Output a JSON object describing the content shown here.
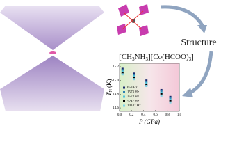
{
  "labels": {
    "structure": "Structure",
    "formula": [
      "[CH",
      "3",
      "NH",
      "3",
      "][Co(HCOO)",
      "3",
      "]"
    ]
  },
  "chart_data": {
    "type": "scatter",
    "y_label": [
      "T",
      "N",
      " (K)"
    ],
    "x_label": "P (GPa)",
    "x": [
      0.05,
      0.25,
      0.45,
      0.7,
      0.85
    ],
    "series": [
      {
        "name": "653 Hz",
        "color": "#1a2a6c",
        "values": [
          15.17,
          15.1,
          15.0,
          14.86,
          14.76
        ]
      },
      {
        "name": "1573 Hz",
        "color": "#2a7fb0",
        "values": [
          15.15,
          15.08,
          14.98,
          14.84,
          14.74
        ]
      },
      {
        "name": "3573 Hz",
        "color": "#4fc3d9",
        "values": [
          15.13,
          15.06,
          14.96,
          14.82,
          14.72
        ]
      },
      {
        "name": "5247 Hz",
        "color": "#000000",
        "values": [
          15.11,
          15.04,
          14.94,
          14.8,
          14.7
        ]
      },
      {
        "name": "10147 Hz",
        "color": "#7fd3e6",
        "values": [
          15.09,
          15.02,
          14.92,
          14.78,
          14.68
        ]
      }
    ],
    "xlim": [
      0,
      1
    ],
    "xticks": [
      {
        "value": 0,
        "label": "0.0"
      },
      0.2,
      0.4,
      0.6,
      0.8,
      {
        "value": 1,
        "label": "1.0"
      }
    ],
    "ylim": [
      14.55,
      15.25
    ],
    "yticks": [
      15.2,
      {
        "value": 15,
        "label": "15.0"
      },
      14.8,
      14.6
    ]
  }
}
